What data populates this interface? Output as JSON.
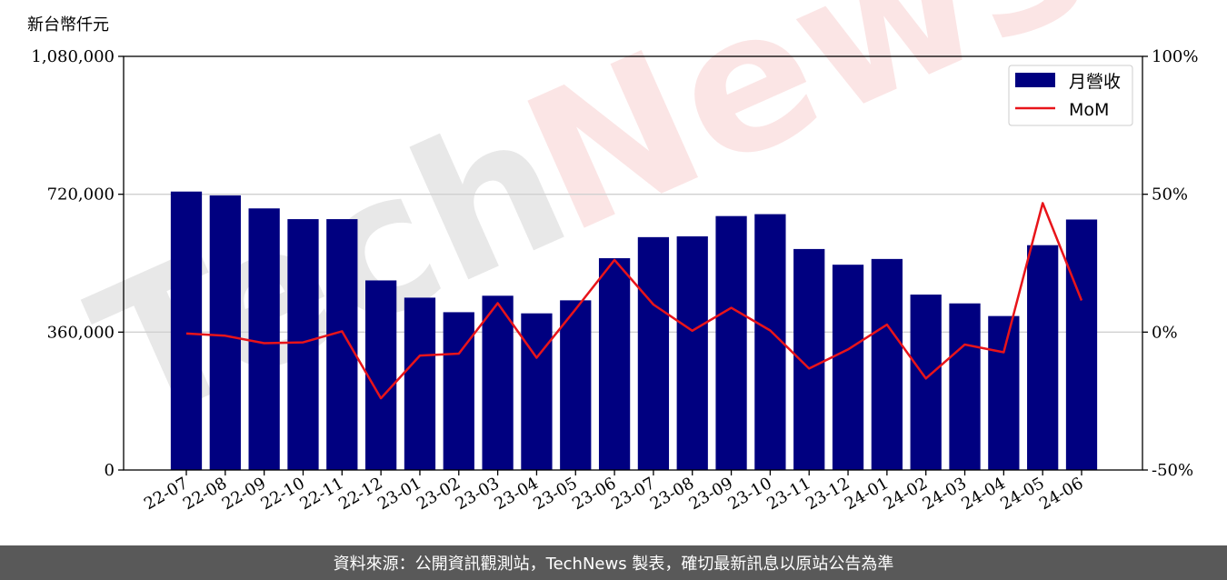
{
  "colors": {
    "bar": "#000080",
    "line": "#e8141a",
    "grid": "#d0d0d0",
    "footer_bg": "#595959",
    "watermark_gray": "#e6e6e6",
    "watermark_pink": "#fbe3e3"
  },
  "watermark": {
    "text_tech": "Tech",
    "text_news": "News"
  },
  "footer": {
    "text": "資料來源：公開資訊觀測站，TechNews 製表，確切最新訊息以原站公告為準"
  },
  "chart_data": {
    "type": "bar",
    "categories": [
      "22-07",
      "22-08",
      "22-09",
      "22-10",
      "22-11",
      "22-12",
      "23-01",
      "23-02",
      "23-03",
      "23-04",
      "23-05",
      "23-06",
      "23-07",
      "23-08",
      "23-09",
      "23-10",
      "23-11",
      "23-12",
      "24-01",
      "24-02",
      "24-03",
      "24-04",
      "24-05",
      "24-06"
    ],
    "y_unit_label": "新台幣仟元",
    "ylim": [
      0,
      1080000
    ],
    "y_ticks": [
      0,
      360000,
      720000,
      1080000
    ],
    "y_tick_labels": [
      "0",
      "360,000",
      "720,000",
      "1,080,000"
    ],
    "y2lim": [
      -50,
      100
    ],
    "y2_ticks": [
      -50,
      0,
      50,
      100
    ],
    "y2_tick_labels": [
      "-50%",
      "0%",
      "50%",
      "100%"
    ],
    "grid": "horizontal",
    "legend_position": "top-right",
    "series": [
      {
        "name": "月營收",
        "type": "bar",
        "axis": "left",
        "values": [
          727000,
          717000,
          683000,
          655000,
          655000,
          495000,
          450000,
          412000,
          455000,
          409000,
          443000,
          553000,
          608000,
          610000,
          663000,
          668000,
          577000,
          536000,
          551000,
          458000,
          435000,
          402000,
          587000,
          654000
        ]
      },
      {
        "name": "MoM",
        "type": "line",
        "axis": "right",
        "values": [
          -0.5,
          -1.3,
          -4.0,
          -3.7,
          0.3,
          -24.0,
          -8.5,
          -7.8,
          10.5,
          -9.3,
          8.3,
          26.2,
          10.0,
          0.5,
          8.8,
          0.6,
          -13.2,
          -6.3,
          2.7,
          -16.8,
          -4.5,
          -7.3,
          46.8,
          11.5
        ]
      }
    ]
  }
}
